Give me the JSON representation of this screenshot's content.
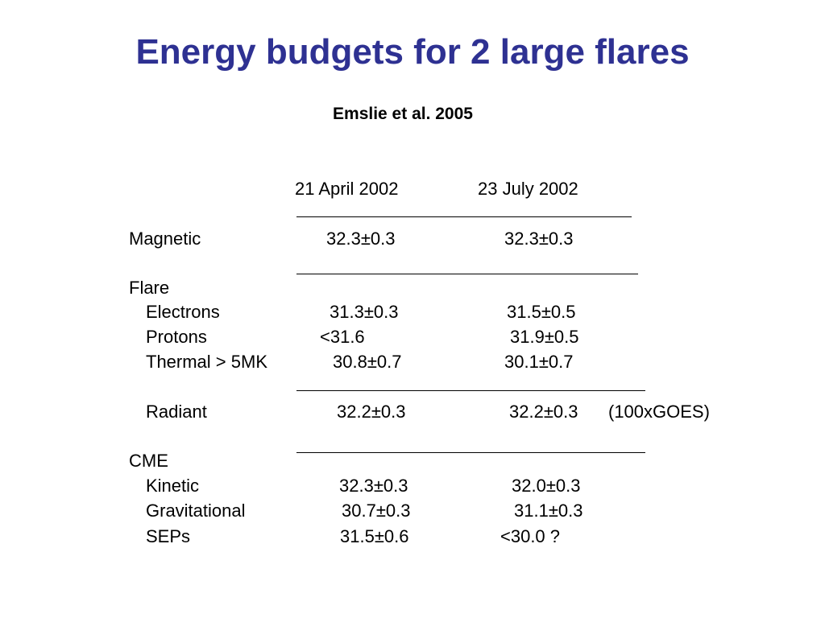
{
  "slide": {
    "title": "Energy budgets for 2 large flares",
    "subtitle": "Emslie et al. 2005"
  },
  "table": {
    "columns": [
      "21 April 2002",
      "23 July 2002"
    ],
    "rows": {
      "magnetic": {
        "label": "Magnetic",
        "col1": "32.3±0.3",
        "col2": "32.3±0.3"
      },
      "flare": {
        "label": "Flare"
      },
      "electrons": {
        "label": "Electrons",
        "col1": "31.3±0.3",
        "col2": "31.5±0.5"
      },
      "protons": {
        "label": "Protons",
        "col1": "<31.6",
        "col2": "31.9±0.5"
      },
      "thermal": {
        "label": "Thermal > 5MK",
        "col1": "30.8±0.7",
        "col2": "30.1±0.7"
      },
      "radiant": {
        "label": "Radiant",
        "col1": "32.2±0.3",
        "col2": "32.2±0.3",
        "note": "(100xGOES)"
      },
      "cme": {
        "label": "CME"
      },
      "kinetic": {
        "label": "Kinetic",
        "col1": "32.3±0.3",
        "col2": "32.0±0.3"
      },
      "gravitational": {
        "label": "Gravitational",
        "col1": "30.7±0.3",
        "col2": "31.1±0.3"
      },
      "seps": {
        "label": "SEPs",
        "col1": "31.5±0.6",
        "col2": "<30.0 ?"
      }
    }
  }
}
